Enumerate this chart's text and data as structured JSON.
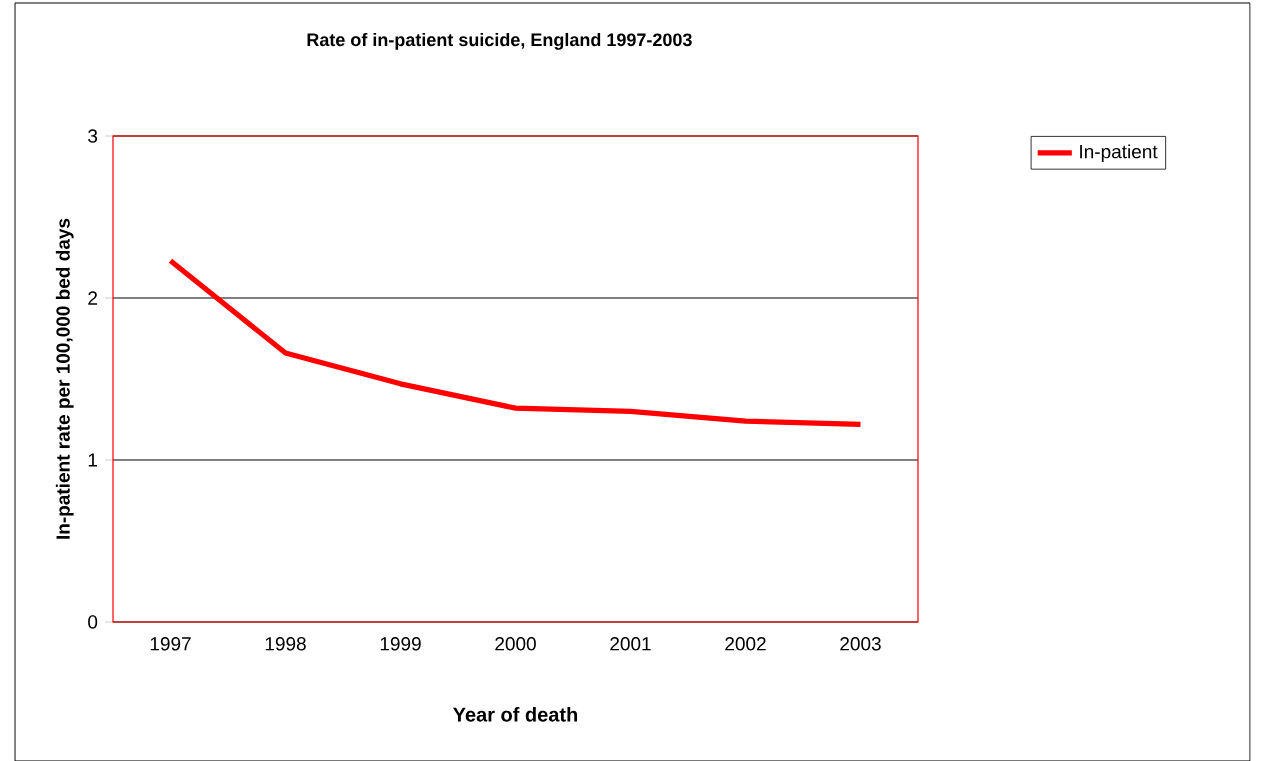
{
  "chart_data": {
    "type": "line",
    "title": "Rate of in-patient suicide, England 1997-2003",
    "xlabel": "Year of death",
    "ylabel": "In-patient rate per 100,000 bed days",
    "categories": [
      "1997",
      "1998",
      "1999",
      "2000",
      "2001",
      "2002",
      "2003"
    ],
    "series": [
      {
        "name": "In-patient",
        "color": "#ff0000",
        "values": [
          2.23,
          1.66,
          1.47,
          1.32,
          1.3,
          1.24,
          1.22
        ]
      }
    ],
    "ylim": [
      0,
      3
    ],
    "yticks": [
      0,
      1,
      2,
      3
    ],
    "grid": "y",
    "legend": "top right"
  }
}
